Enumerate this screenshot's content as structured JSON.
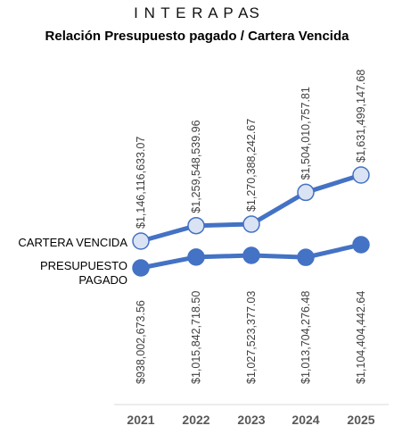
{
  "header": "I N T E R A P AS",
  "chart_data": {
    "type": "line",
    "title": "Relación Presupuesto pagado / Cartera Vencida",
    "categories": [
      "2021",
      "2022",
      "2023",
      "2024",
      "2025"
    ],
    "series": [
      {
        "name": "CARTERA VENCIDA",
        "values": [
          1146116633.07,
          1259548539.96,
          1270388242.67,
          1504010757.81,
          1631499147.68
        ],
        "labels": [
          "$1,146,116,633.07",
          "$1,259,548,539.96",
          "$1,270,388,242.67",
          "$1,504,010,757.81",
          "$1,631,499,147.68"
        ],
        "line_color": "#4472C4",
        "marker_fill": "#DAE3F3"
      },
      {
        "name": "PRESUPUESTO PAGADO",
        "values": [
          938002673.56,
          1015842718.5,
          1027523377.03,
          1013704276.48,
          1104404442.64
        ],
        "labels": [
          "$938,002,673.56",
          "$1,015,842,718.50",
          "$1,027,523,377.03",
          "$1,013,704,276.48",
          "$1,104,404,442.64"
        ],
        "line_color": "#4472C4",
        "marker_fill": "#4472C4"
      }
    ],
    "grid": false,
    "legend": "left, next to series lines"
  }
}
